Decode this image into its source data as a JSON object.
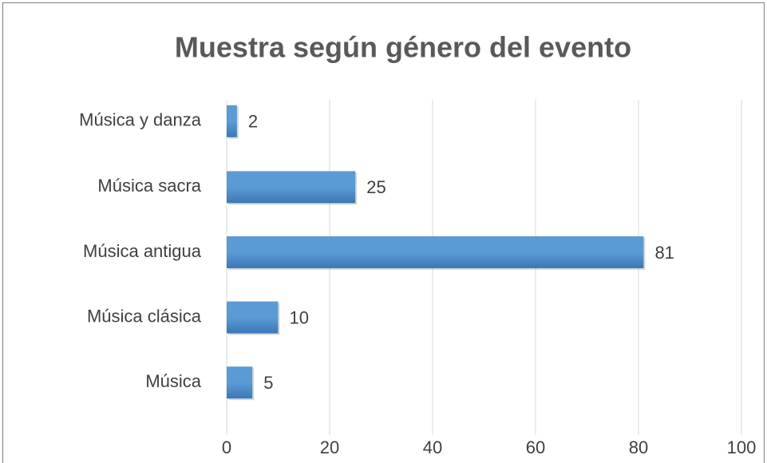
{
  "chart_data": {
    "type": "barh",
    "title": "Muestra según género del evento",
    "categories": [
      "Música y danza",
      "Música sacra",
      "Música antigua",
      "Música clásica",
      "Música"
    ],
    "values": [
      2,
      25,
      81,
      10,
      5
    ],
    "color": "#5b9bd5",
    "xlim": [
      0,
      100
    ],
    "xticks": [
      0,
      20,
      40,
      60,
      80,
      100
    ],
    "grid": true
  }
}
